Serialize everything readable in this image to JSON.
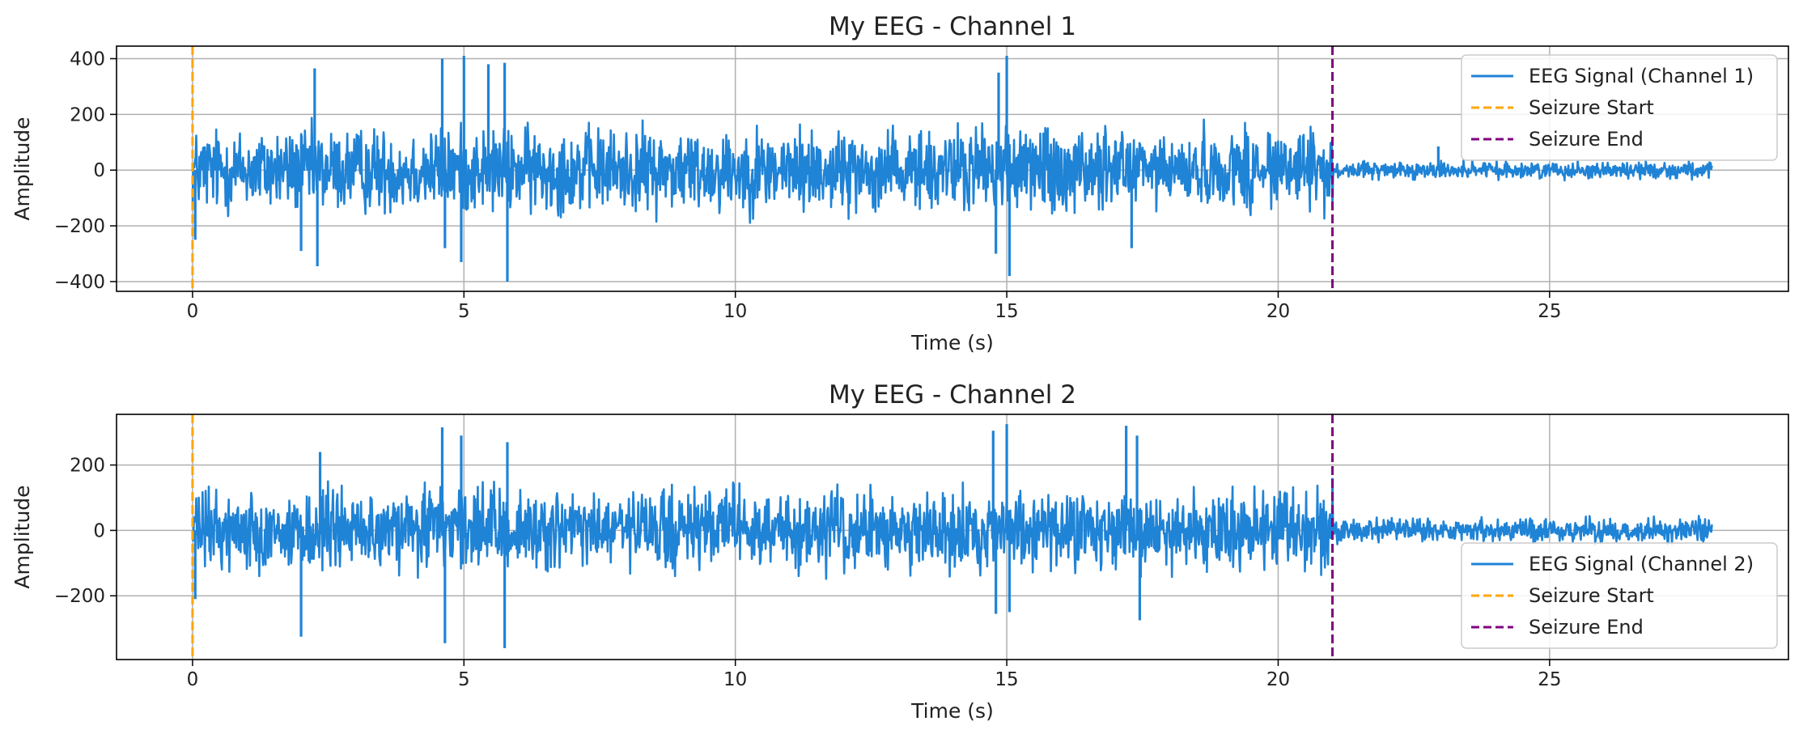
{
  "chart_data": [
    {
      "type": "line",
      "title": "My EEG - Channel 1",
      "xlabel": "Time (s)",
      "ylabel": "Amplitude",
      "xlim": [
        -1.4,
        29.4
      ],
      "ylim": [
        -435,
        445
      ],
      "xticks": [
        0,
        5,
        10,
        15,
        20,
        25
      ],
      "yticks": [
        -400,
        -200,
        0,
        200,
        400
      ],
      "grid": true,
      "legend_position": "top-right",
      "legend": [
        "EEG Signal (Channel 1)",
        "Seizure Start",
        "Seizure End"
      ],
      "series": [
        {
          "name": "EEG Signal (Channel 1)",
          "color": "#1f83d6",
          "duration": [
            0,
            28
          ],
          "segments": [
            {
              "x": [
                0,
                21
              ],
              "amplitude": 190
            },
            {
              "x": [
                21,
                28
              ],
              "amplitude": 38
            }
          ],
          "spikes": [
            {
              "x": 0.05,
              "y": -250
            },
            {
              "x": 2.0,
              "y": -290
            },
            {
              "x": 2.25,
              "y": 365
            },
            {
              "x": 2.3,
              "y": -345
            },
            {
              "x": 4.6,
              "y": 400
            },
            {
              "x": 4.65,
              "y": -280
            },
            {
              "x": 4.95,
              "y": -330
            },
            {
              "x": 5.0,
              "y": 410
            },
            {
              "x": 5.45,
              "y": 380
            },
            {
              "x": 5.75,
              "y": 385
            },
            {
              "x": 5.8,
              "y": -400
            },
            {
              "x": 14.8,
              "y": -300
            },
            {
              "x": 14.85,
              "y": 350
            },
            {
              "x": 15.0,
              "y": 410
            },
            {
              "x": 15.05,
              "y": -380
            },
            {
              "x": 17.3,
              "y": -280
            },
            {
              "x": 22.95,
              "y": 85
            }
          ]
        }
      ],
      "vlines": [
        {
          "name": "Seizure Start",
          "x": 0,
          "color": "#ffa500",
          "style": "dashed"
        },
        {
          "name": "Seizure End",
          "x": 21,
          "color": "#800080",
          "style": "dashed"
        }
      ]
    },
    {
      "type": "line",
      "title": "My EEG - Channel 2",
      "xlabel": "Time (s)",
      "ylabel": "Amplitude",
      "xlim": [
        -1.4,
        29.4
      ],
      "ylim": [
        -395,
        355
      ],
      "xticks": [
        0,
        5,
        10,
        15,
        20,
        25
      ],
      "yticks": [
        -200,
        0,
        200
      ],
      "grid": true,
      "legend_position": "bottom-right",
      "legend": [
        "EEG Signal (Channel 2)",
        "Seizure Start",
        "Seizure End"
      ],
      "series": [
        {
          "name": "EEG Signal (Channel 2)",
          "color": "#1f83d6",
          "duration": [
            0,
            28
          ],
          "segments": [
            {
              "x": [
                0,
                21
              ],
              "amplitude": 150
            },
            {
              "x": [
                21,
                28
              ],
              "amplitude": 45
            }
          ],
          "spikes": [
            {
              "x": 0.05,
              "y": -210
            },
            {
              "x": 2.0,
              "y": -325
            },
            {
              "x": 2.35,
              "y": 240
            },
            {
              "x": 4.6,
              "y": 315
            },
            {
              "x": 4.65,
              "y": -345
            },
            {
              "x": 4.95,
              "y": 290
            },
            {
              "x": 5.75,
              "y": -360
            },
            {
              "x": 5.8,
              "y": 270
            },
            {
              "x": 14.75,
              "y": 305
            },
            {
              "x": 14.8,
              "y": -255
            },
            {
              "x": 15.0,
              "y": 325
            },
            {
              "x": 15.05,
              "y": -250
            },
            {
              "x": 17.2,
              "y": 320
            },
            {
              "x": 17.4,
              "y": 290
            },
            {
              "x": 17.45,
              "y": -275
            },
            {
              "x": 21.0,
              "y": 160
            }
          ]
        }
      ],
      "vlines": [
        {
          "name": "Seizure Start",
          "x": 0,
          "color": "#ffa500",
          "style": "dashed"
        },
        {
          "name": "Seizure End",
          "x": 21,
          "color": "#800080",
          "style": "dashed"
        }
      ]
    }
  ]
}
